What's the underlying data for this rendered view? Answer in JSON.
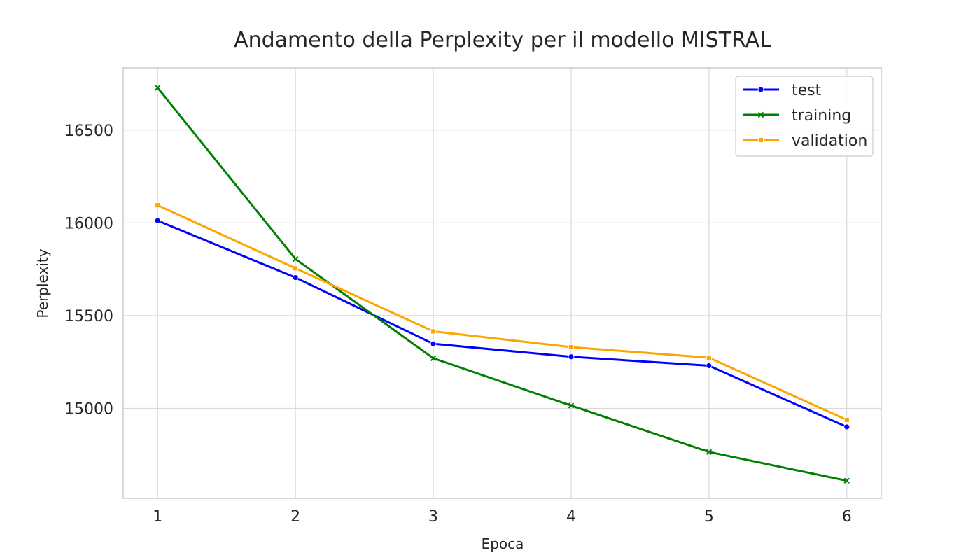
{
  "chart_data": {
    "type": "line",
    "title": "Andamento della Perplexity per il modello MISTRAL",
    "xlabel": "Epoca",
    "ylabel": "Perplexity",
    "x": [
      1,
      2,
      3,
      4,
      5,
      6
    ],
    "xlim": [
      0.75,
      6.25
    ],
    "ylim": [
      14515,
      16835
    ],
    "yticks": [
      15000,
      15500,
      16000,
      16500
    ],
    "grid": true,
    "legend_position": "top-right",
    "series": [
      {
        "name": "test",
        "color": "#0000ff",
        "marker": "circle",
        "values": [
          16012,
          15705,
          15348,
          15278,
          15230,
          14900
        ]
      },
      {
        "name": "training",
        "color": "#008000",
        "marker": "x",
        "values": [
          16728,
          15805,
          15270,
          15015,
          14765,
          14610
        ]
      },
      {
        "name": "validation",
        "color": "#ffa500",
        "marker": "square",
        "values": [
          16095,
          15755,
          15415,
          15330,
          15273,
          14938
        ]
      }
    ]
  }
}
